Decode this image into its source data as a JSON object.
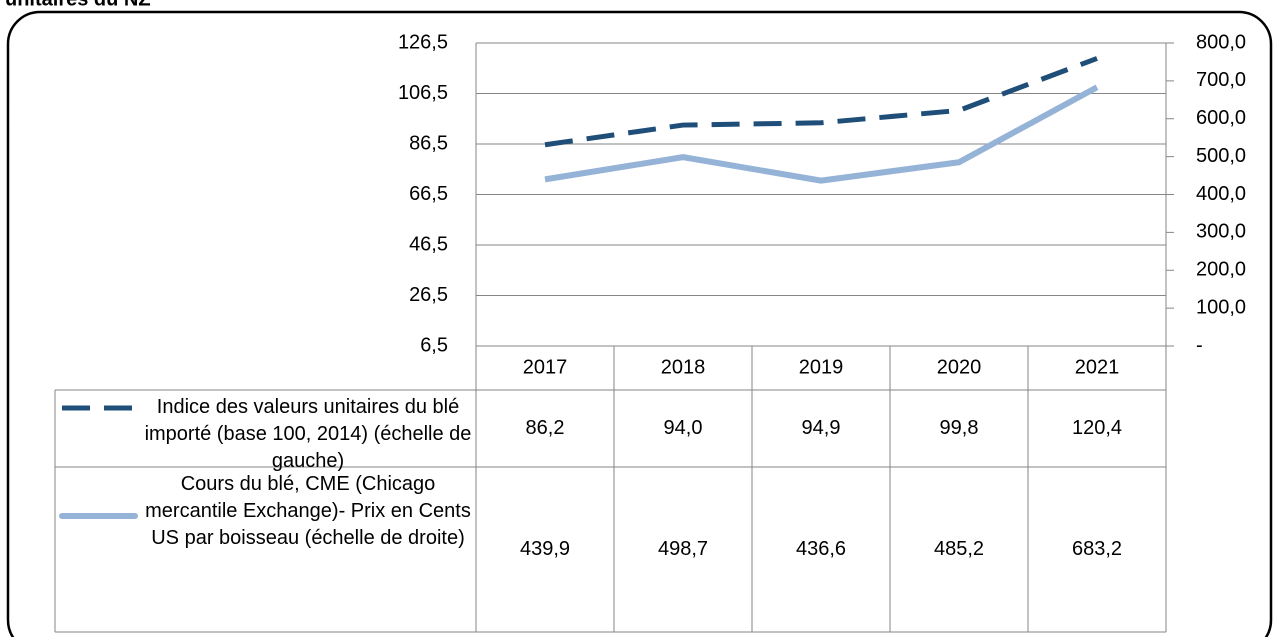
{
  "chart_data": {
    "type": "line",
    "title": "unitaires du NZ",
    "categories": [
      "2017",
      "2018",
      "2019",
      "2020",
      "2021"
    ],
    "series": [
      {
        "name": "Indice des valeurs unitaires du blé importé (base 100, 2014) (échelle de gauche)",
        "color": "#1f4e79",
        "line_style": "dashed",
        "axis": "y",
        "values": [
          86.2,
          94.0,
          94.9,
          99.8,
          120.4
        ],
        "value_labels": [
          "86,2",
          "94,0",
          "94,9",
          "99,8",
          "120,4"
        ]
      },
      {
        "name": "Cours du blé, CME (Chicago mercantile Exchange)- Prix en Cents US par boisseau (échelle de droite)",
        "color": "#95b3d7",
        "line_style": "solid",
        "axis": "y2",
        "values": [
          439.9,
          498.7,
          436.6,
          485.2,
          683.2
        ],
        "value_labels": [
          "439,9",
          "498,7",
          "436,6",
          "485,2",
          "683,2"
        ]
      }
    ],
    "ylim": [
      6.5,
      126.5
    ],
    "yticks": [
      {
        "value": 6.5,
        "label": "6,5"
      },
      {
        "value": 26.5,
        "label": "26,5"
      },
      {
        "value": 46.5,
        "label": "46,5"
      },
      {
        "value": 66.5,
        "label": "66,5"
      },
      {
        "value": 86.5,
        "label": "86,5"
      },
      {
        "value": 106.5,
        "label": "106,5"
      },
      {
        "value": 126.5,
        "label": "126,5"
      }
    ],
    "y2lim": [
      0,
      800
    ],
    "y2ticks": [
      {
        "value": 0,
        "label": "-"
      },
      {
        "value": 100,
        "label": "100,0"
      },
      {
        "value": 200,
        "label": "200,0"
      },
      {
        "value": 300,
        "label": "300,0"
      },
      {
        "value": 400,
        "label": "400,0"
      },
      {
        "value": 500,
        "label": "500,0"
      },
      {
        "value": 600,
        "label": "600,0"
      },
      {
        "value": 700,
        "label": "700,0"
      },
      {
        "value": 800,
        "label": "800,0"
      }
    ],
    "grid": true
  }
}
